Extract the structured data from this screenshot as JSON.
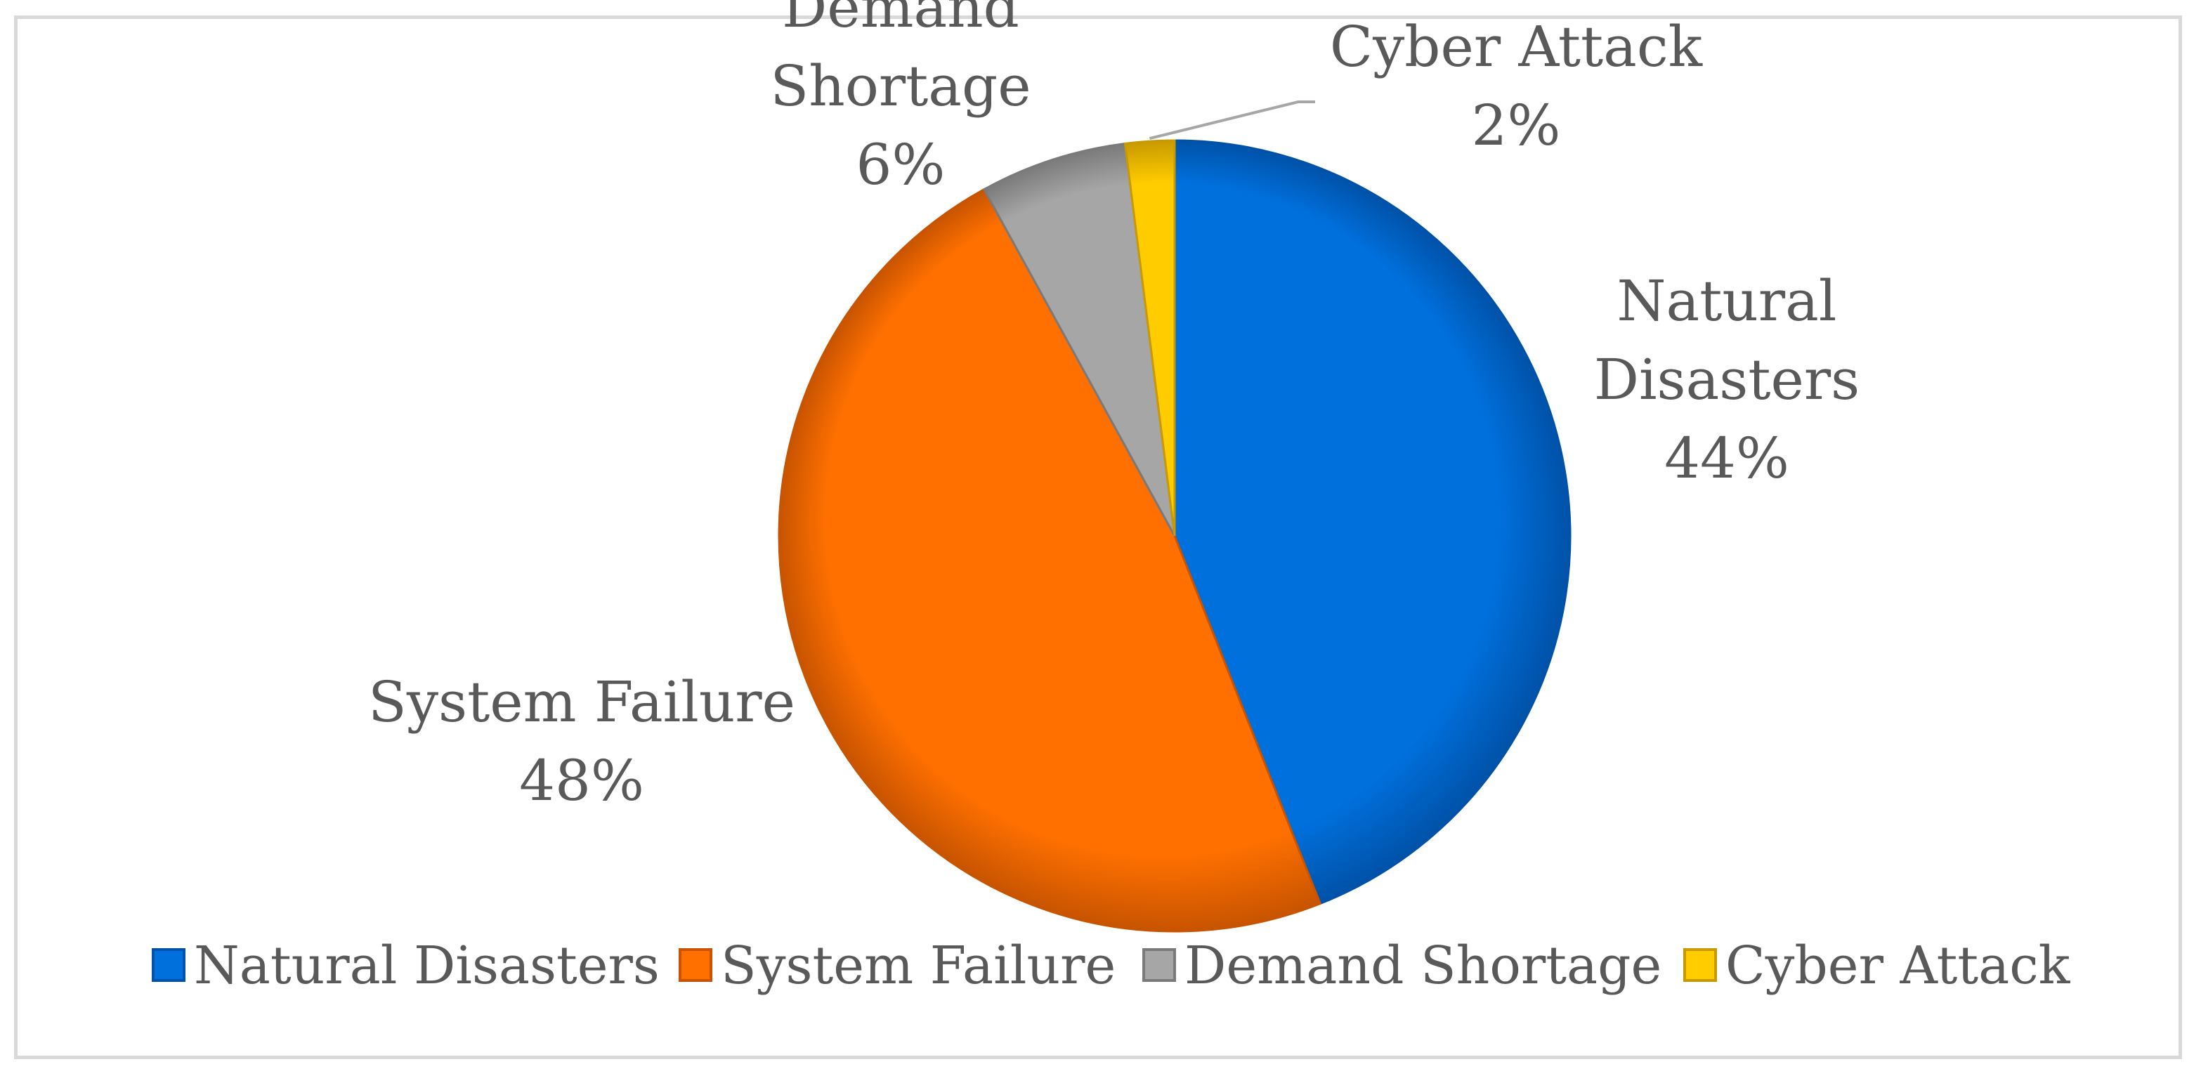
{
  "chart_data": {
    "type": "pie",
    "title": "",
    "categories": [
      "Natural Disasters",
      "System Failure",
      "Demand Shortage",
      "Cyber Attack"
    ],
    "values": [
      44,
      48,
      6,
      2
    ],
    "unit": "%",
    "slice_labels": [
      {
        "name_lines": [
          "Natural",
          "Disasters"
        ],
        "pct": "44%"
      },
      {
        "name_lines": [
          "System Failure"
        ],
        "pct": "48%"
      },
      {
        "name_lines": [
          "Demand",
          "Shortage"
        ],
        "pct": "6%"
      },
      {
        "name_lines": [
          "Cyber Attack"
        ],
        "pct": "2%"
      }
    ],
    "colors": [
      "#0070dd",
      "#ff7000",
      "#a6a6a6",
      "#ffcc00"
    ],
    "dark_colors": [
      "#0052a8",
      "#c85400",
      "#7a7a7a",
      "#c89a00"
    ],
    "legend": {
      "position": "bottom",
      "items": [
        "Natural Disasters",
        "System Failure",
        "Demand Shortage",
        "Cyber Attack"
      ]
    }
  }
}
